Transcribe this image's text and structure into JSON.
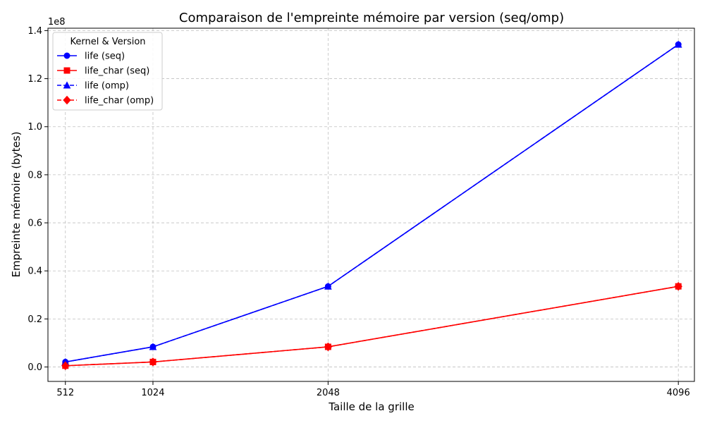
{
  "chart_data": {
    "type": "line",
    "title": "Comparaison de l'empreinte mémoire par version (seq/omp)",
    "xlabel": "Taille de la grille",
    "ylabel": "Empreinte mémoire (bytes)",
    "y_offset_label": "1e8",
    "x": [
      512,
      1024,
      2048,
      4096
    ],
    "x_ticks": [
      "512",
      "1024",
      "2048",
      "4096"
    ],
    "y_ticks": [
      "0.0",
      "0.2",
      "0.4",
      "0.6",
      "0.8",
      "1.0",
      "1.2",
      "1.4"
    ],
    "y_scale": 100000000,
    "xlim": [
      410,
      4190
    ],
    "ylim": [
      -6000000,
      141000000
    ],
    "grid": true,
    "legend_placement": "top-left",
    "legend_title": "Kernel & Version",
    "series": [
      {
        "name": "life (seq)",
        "values": [
          2097152,
          8388608,
          33554432,
          134217728
        ],
        "color": "#0000ff",
        "marker": "circle",
        "dash": "solid"
      },
      {
        "name": "life_char (seq)",
        "values": [
          524288,
          2097152,
          8388608,
          33554432
        ],
        "color": "#ff0000",
        "marker": "square",
        "dash": "solid"
      },
      {
        "name": "life (omp)",
        "values": [
          2097152,
          8388608,
          33554432,
          134217728
        ],
        "color": "#0000ff",
        "marker": "triangle",
        "dash": "dashed"
      },
      {
        "name": "life_char (omp)",
        "values": [
          524288,
          2097152,
          8388608,
          33554432
        ],
        "color": "#ff0000",
        "marker": "diamond",
        "dash": "dashed"
      }
    ]
  }
}
